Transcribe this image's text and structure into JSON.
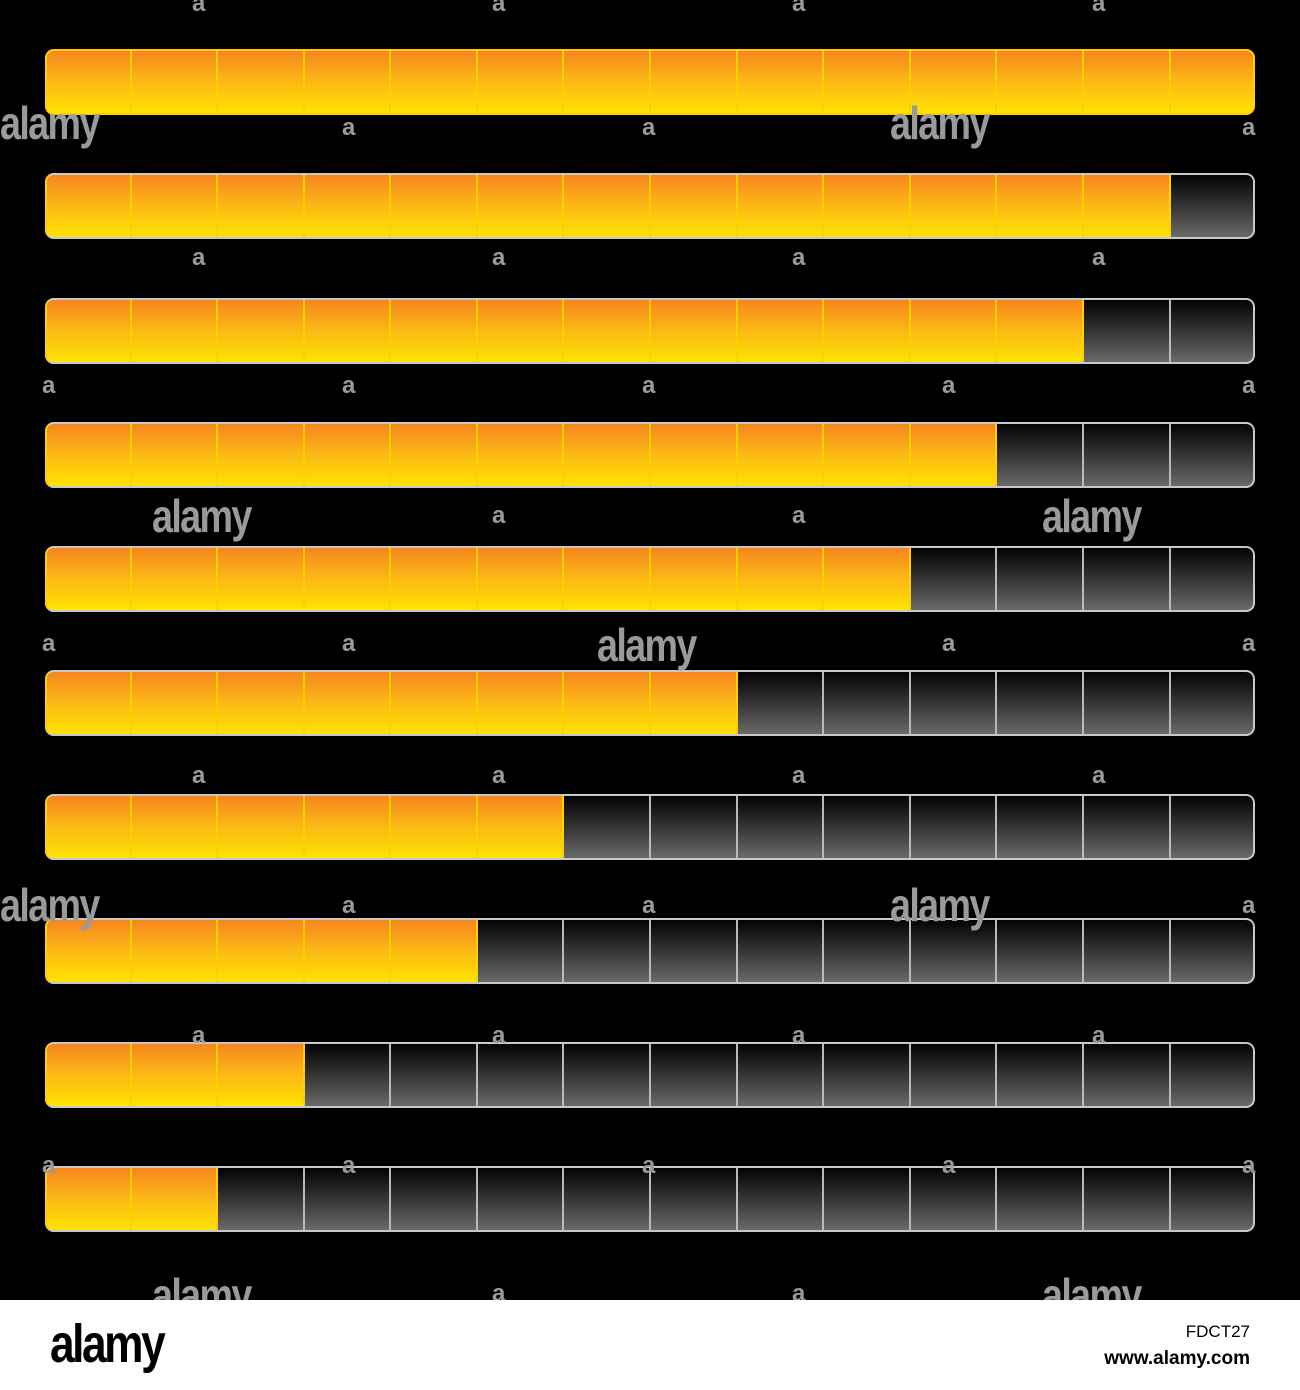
{
  "progress_bars": {
    "segment_count": 14,
    "fill_color": "#fbb417",
    "empty_color": "#3a3a3a",
    "items": [
      {
        "filled_segments": 14
      },
      {
        "filled_segments": 13
      },
      {
        "filled_segments": 12
      },
      {
        "filled_segments": 11
      },
      {
        "filled_segments": 10
      },
      {
        "filled_segments": 8
      },
      {
        "filled_segments": 6
      },
      {
        "filled_segments": 5
      },
      {
        "filled_segments": 3
      },
      {
        "filled_segments": 2
      }
    ]
  },
  "watermarks": {
    "word": "alamy",
    "small_mark": "a"
  },
  "footer": {
    "logo": "alamy",
    "image_id": "FDCT27",
    "url": "www.alamy.com"
  }
}
